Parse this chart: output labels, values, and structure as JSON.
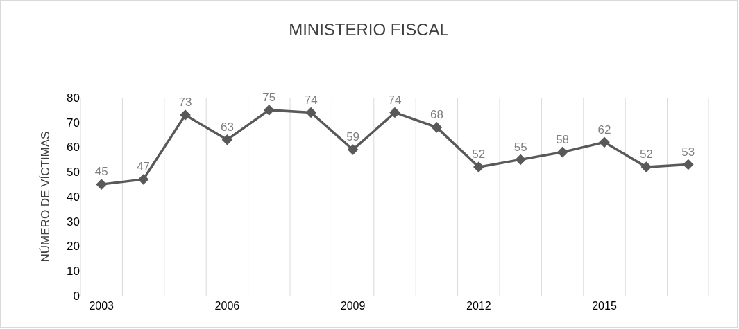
{
  "chart_data": {
    "type": "line",
    "title": "MINISTERIO FISCAL",
    "ylabel": "NÚMERO DE VÍCTIMAS",
    "categories": [
      "2003",
      null,
      null,
      "2006",
      null,
      null,
      "2009",
      null,
      null,
      "2012",
      null,
      null,
      "2015",
      null,
      null
    ],
    "series": [
      {
        "color": "#595959",
        "values": [
          45,
          47,
          73,
          63,
          75,
          74,
          59,
          74,
          68,
          52,
          55,
          58,
          62,
          52,
          53
        ]
      }
    ],
    "ylim": [
      0,
      80
    ],
    "yticks": [
      0,
      10,
      20,
      30,
      40,
      50,
      60,
      70,
      80
    ],
    "grid": "x",
    "marker": "diamond",
    "line_style": "solid",
    "data_labels": true,
    "legend": false
  }
}
